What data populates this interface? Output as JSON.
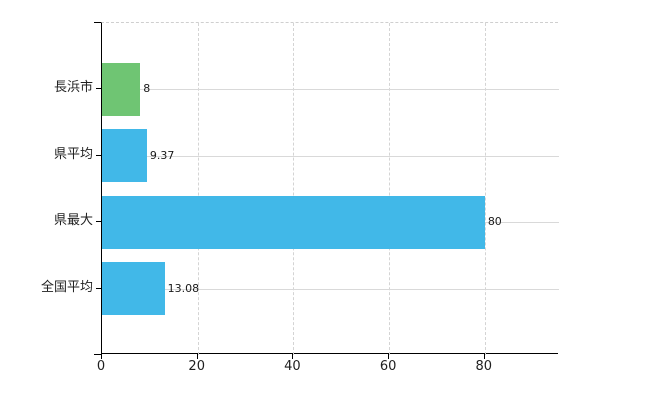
{
  "chart_data": {
    "type": "bar",
    "orientation": "horizontal",
    "title": "",
    "xlabel": "",
    "ylabel": "",
    "legend_position": "none",
    "categories": [
      "長浜市",
      "県平均",
      "県最大",
      "全国平均"
    ],
    "values": [
      8,
      9.37,
      80,
      13.08
    ],
    "value_labels": [
      "8",
      "9.37",
      "80",
      "13.08"
    ],
    "bar_colors": [
      "#6fc573",
      "#41b8e8",
      "#41b8e8",
      "#41b8e8"
    ],
    "x_ticks": [
      0,
      20,
      40,
      60,
      80
    ],
    "x_tick_labels": [
      "0",
      "20",
      "40",
      "60",
      "80"
    ],
    "xlim": [
      0,
      95.5
    ],
    "grid_vertical_style": "dashed",
    "grid_horizontal_style": "solid",
    "grid_color": "#d4d4d4",
    "axis_color": "#000000",
    "label_color": "#1f1f1f",
    "background_color": "#ffffff"
  }
}
